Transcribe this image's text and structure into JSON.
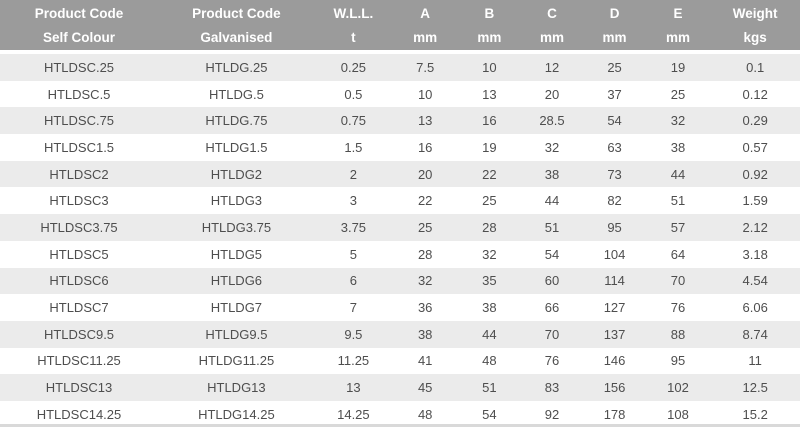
{
  "colors": {
    "header_bg": "#9b9b9b",
    "header_text": "#ffffff",
    "row_stripe": "#ebebeb",
    "row_plain": "#ffffff",
    "body_text": "#4e4e4e",
    "bottom_strip": "#d9d9d9"
  },
  "chart_data": {
    "type": "table",
    "title": "",
    "columns": [
      {
        "line1": "Product Code",
        "line2": "Self Colour"
      },
      {
        "line1": "Product Code",
        "line2": "Galvanised"
      },
      {
        "line1": "W.L.L.",
        "line2": "t"
      },
      {
        "line1": "A",
        "line2": "mm"
      },
      {
        "line1": "B",
        "line2": "mm"
      },
      {
        "line1": "C",
        "line2": "mm"
      },
      {
        "line1": "D",
        "line2": "mm"
      },
      {
        "line1": "E",
        "line2": "mm"
      },
      {
        "line1": "Weight",
        "line2": "kgs"
      }
    ],
    "rows": [
      [
        "HTLDSC.25",
        "HTLDG.25",
        "0.25",
        "7.5",
        "10",
        "12",
        "25",
        "19",
        "0.1"
      ],
      [
        "HTLDSC.5",
        "HTLDG.5",
        "0.5",
        "10",
        "13",
        "20",
        "37",
        "25",
        "0.12"
      ],
      [
        "HTLDSC.75",
        "HTLDG.75",
        "0.75",
        "13",
        "16",
        "28.5",
        "54",
        "32",
        "0.29"
      ],
      [
        "HTLDSC1.5",
        "HTLDG1.5",
        "1.5",
        "16",
        "19",
        "32",
        "63",
        "38",
        "0.57"
      ],
      [
        "HTLDSC2",
        "HTLDG2",
        "2",
        "20",
        "22",
        "38",
        "73",
        "44",
        "0.92"
      ],
      [
        "HTLDSC3",
        "HTLDG3",
        "3",
        "22",
        "25",
        "44",
        "82",
        "51",
        "1.59"
      ],
      [
        "HTLDSC3.75",
        "HTLDG3.75",
        "3.75",
        "25",
        "28",
        "51",
        "95",
        "57",
        "2.12"
      ],
      [
        "HTLDSC5",
        "HTLDG5",
        "5",
        "28",
        "32",
        "54",
        "104",
        "64",
        "3.18"
      ],
      [
        "HTLDSC6",
        "HTLDG6",
        "6",
        "32",
        "35",
        "60",
        "114",
        "70",
        "4.54"
      ],
      [
        "HTLDSC7",
        "HTLDG7",
        "7",
        "36",
        "38",
        "66",
        "127",
        "76",
        "6.06"
      ],
      [
        "HTLDSC9.5",
        "HTLDG9.5",
        "9.5",
        "38",
        "44",
        "70",
        "137",
        "88",
        "8.74"
      ],
      [
        "HTLDSC11.25",
        "HTLDG11.25",
        "11.25",
        "41",
        "48",
        "76",
        "146",
        "95",
        "11"
      ],
      [
        "HTLDSC13",
        "HTLDG13",
        "13",
        "45",
        "51",
        "83",
        "156",
        "102",
        "12.5"
      ],
      [
        "HTLDSC14.25",
        "HTLDG14.25",
        "14.25",
        "48",
        "54",
        "92",
        "178",
        "108",
        "15.2"
      ]
    ]
  }
}
